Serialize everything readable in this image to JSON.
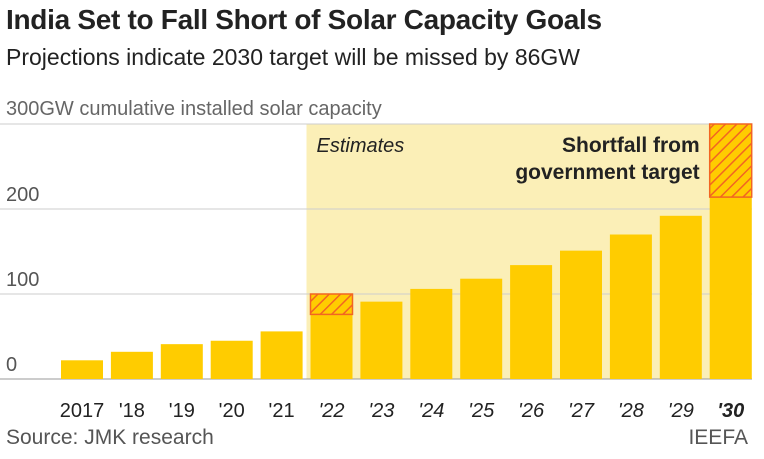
{
  "title": "India Set to Fall Short of Solar Capacity Goals",
  "subtitle": "Projections indicate 2030 target will be missed by 86GW",
  "source": "Source: JMK research",
  "brand": "IEEFA",
  "colors": {
    "bar": "#ffcc00",
    "estimate_bg": "#fbefb7",
    "shortfall_stroke": "#f26522",
    "grid": "#cccccc",
    "text": "#222222"
  },
  "chart_data": {
    "type": "bar",
    "y_unit_label": "300GW cumulative installed solar capacity",
    "categories": [
      "2017",
      "'18",
      "'19",
      "'20",
      "'21",
      "'22",
      "'23",
      "'24",
      "'25",
      "'26",
      "'27",
      "'28",
      "'29",
      "'30"
    ],
    "values": [
      22,
      32,
      41,
      45,
      56,
      76,
      91,
      106,
      118,
      134,
      151,
      170,
      192,
      214
    ],
    "targets": [
      null,
      null,
      null,
      null,
      null,
      100,
      null,
      null,
      null,
      null,
      null,
      null,
      null,
      300
    ],
    "yticks": [
      0,
      100,
      200,
      300
    ],
    "ytick_labels": [
      "0",
      "100",
      "200",
      ""
    ],
    "ylim": [
      0,
      300
    ],
    "estimates_start_index": 5,
    "estimates_label": "Estimates",
    "shortfall_label_lines": [
      "Shortfall from",
      "government target"
    ],
    "grid": true
  }
}
